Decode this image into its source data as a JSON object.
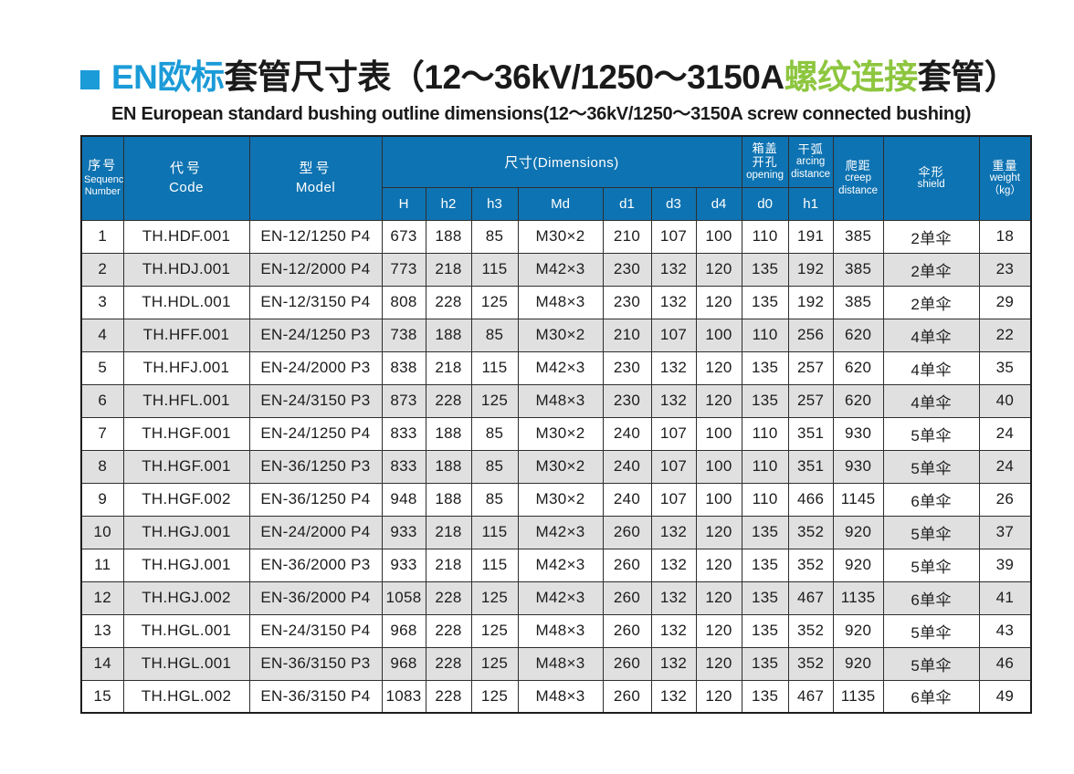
{
  "colors": {
    "title_blue": "#1b9bd8",
    "accent_green": "#8dc63f",
    "header_blue": "#0e73b2",
    "stripe_gray": "#e0e0e0",
    "border_dark": "#2e2e2e"
  },
  "title": {
    "segments": [
      {
        "text": "EN欧标",
        "color": "blue"
      },
      {
        "text": "套管尺寸表（12～36kV/1250～3150A",
        "color": "black"
      },
      {
        "text": "螺纹连接",
        "color": "green"
      },
      {
        "text": "套管）",
        "color": "black"
      }
    ],
    "subtitle": "EN European standard bushing outline dimensions(12～36kV/1250～3150A screw connected bushing)"
  },
  "table": {
    "headers": {
      "sequence_cn": "序号",
      "sequence_en1": "Sequence",
      "sequence_en2": "Number",
      "code_cn": "代号",
      "code_en": "Code",
      "model_cn": "型号",
      "model_en": "Model",
      "dimensions": "尺寸(Dimensions)",
      "dim_subcols": [
        "H",
        "h2",
        "h3",
        "Md",
        "d1",
        "d3",
        "d4"
      ],
      "opening_cn1": "箱盖",
      "opening_cn2": "开孔",
      "opening_en": "opening",
      "opening_sub": "d0",
      "arcing_cn": "干弧",
      "arcing_en1": "arcing",
      "arcing_en2": "distance",
      "arcing_sub": "h1",
      "creep_cn": "爬距",
      "creep_en1": "creep",
      "creep_en2": "distance",
      "shield_cn": "伞形",
      "shield_en": "shield",
      "weight_cn": "重量",
      "weight_en": "weight",
      "weight_unit": "（kg）"
    },
    "rows": [
      [
        "1",
        "TH.HDF.001",
        "EN-12/1250 P4",
        "673",
        "188",
        "85",
        "M30×2",
        "210",
        "107",
        "100",
        "110",
        "191",
        "385",
        "2单伞",
        "18"
      ],
      [
        "2",
        "TH.HDJ.001",
        "EN-12/2000 P4",
        "773",
        "218",
        "115",
        "M42×3",
        "230",
        "132",
        "120",
        "135",
        "192",
        "385",
        "2单伞",
        "23"
      ],
      [
        "3",
        "TH.HDL.001",
        "EN-12/3150 P4",
        "808",
        "228",
        "125",
        "M48×3",
        "230",
        "132",
        "120",
        "135",
        "192",
        "385",
        "2单伞",
        "29"
      ],
      [
        "4",
        "TH.HFF.001",
        "EN-24/1250 P3",
        "738",
        "188",
        "85",
        "M30×2",
        "210",
        "107",
        "100",
        "110",
        "256",
        "620",
        "4单伞",
        "22"
      ],
      [
        "5",
        "TH.HFJ.001",
        "EN-24/2000 P3",
        "838",
        "218",
        "115",
        "M42×3",
        "230",
        "132",
        "120",
        "135",
        "257",
        "620",
        "4单伞",
        "35"
      ],
      [
        "6",
        "TH.HFL.001",
        "EN-24/3150 P3",
        "873",
        "228",
        "125",
        "M48×3",
        "230",
        "132",
        "120",
        "135",
        "257",
        "620",
        "4单伞",
        "40"
      ],
      [
        "7",
        "TH.HGF.001",
        "EN-24/1250 P4",
        "833",
        "188",
        "85",
        "M30×2",
        "240",
        "107",
        "100",
        "110",
        "351",
        "930",
        "5单伞",
        "24"
      ],
      [
        "8",
        "TH.HGF.001",
        "EN-36/1250 P3",
        "833",
        "188",
        "85",
        "M30×2",
        "240",
        "107",
        "100",
        "110",
        "351",
        "930",
        "5单伞",
        "24"
      ],
      [
        "9",
        "TH.HGF.002",
        "EN-36/1250 P4",
        "948",
        "188",
        "85",
        "M30×2",
        "240",
        "107",
        "100",
        "110",
        "466",
        "1145",
        "6单伞",
        "26"
      ],
      [
        "10",
        "TH.HGJ.001",
        "EN-24/2000 P4",
        "933",
        "218",
        "115",
        "M42×3",
        "260",
        "132",
        "120",
        "135",
        "352",
        "920",
        "5单伞",
        "37"
      ],
      [
        "11",
        "TH.HGJ.001",
        "EN-36/2000 P3",
        "933",
        "218",
        "115",
        "M42×3",
        "260",
        "132",
        "120",
        "135",
        "352",
        "920",
        "5单伞",
        "39"
      ],
      [
        "12",
        "TH.HGJ.002",
        "EN-36/2000 P4",
        "1058",
        "228",
        "125",
        "M42×3",
        "260",
        "132",
        "120",
        "135",
        "467",
        "1135",
        "6单伞",
        "41"
      ],
      [
        "13",
        "TH.HGL.001",
        "EN-24/3150 P4",
        "968",
        "228",
        "125",
        "M48×3",
        "260",
        "132",
        "120",
        "135",
        "352",
        "920",
        "5单伞",
        "43"
      ],
      [
        "14",
        "TH.HGL.001",
        "EN-36/3150 P3",
        "968",
        "228",
        "125",
        "M48×3",
        "260",
        "132",
        "120",
        "135",
        "352",
        "920",
        "5单伞",
        "46"
      ],
      [
        "15",
        "TH.HGL.002",
        "EN-36/3150 P4",
        "1083",
        "228",
        "125",
        "M48×3",
        "260",
        "132",
        "120",
        "135",
        "467",
        "1135",
        "6单伞",
        "49"
      ]
    ]
  }
}
